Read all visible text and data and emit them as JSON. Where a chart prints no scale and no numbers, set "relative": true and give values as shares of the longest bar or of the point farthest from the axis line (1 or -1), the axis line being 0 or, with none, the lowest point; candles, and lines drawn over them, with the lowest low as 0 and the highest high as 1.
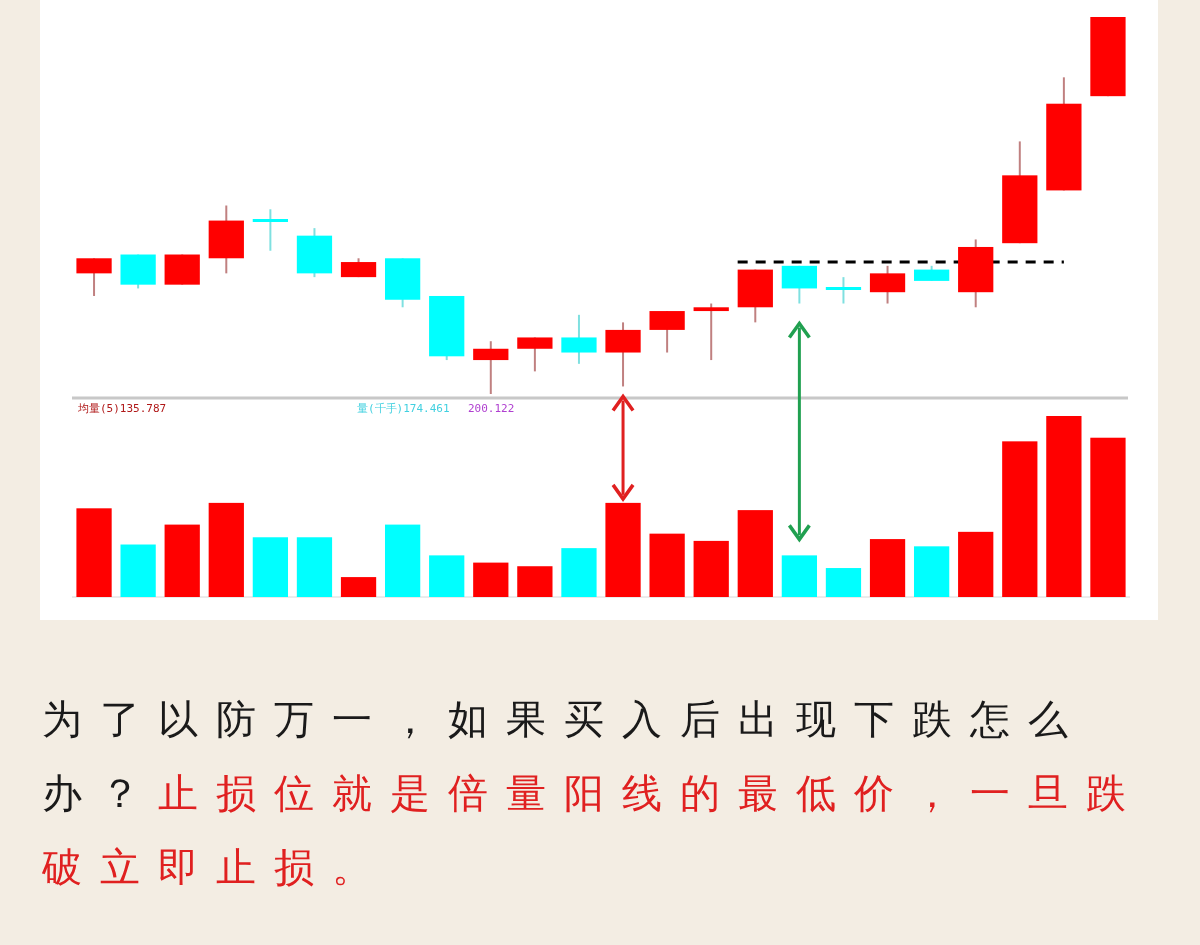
{
  "chart_data": [
    {
      "type": "candlestick",
      "relative": true,
      "categories": [
        null,
        null,
        null,
        null,
        null,
        null,
        null,
        null,
        null,
        null,
        null,
        null,
        null,
        null,
        null,
        null,
        null,
        null,
        null,
        null,
        null,
        null,
        null,
        null
      ],
      "ohlc": [
        [
          0.32,
          0.36,
          0.26,
          0.36
        ],
        [
          0.37,
          0.37,
          0.28,
          0.29
        ],
        [
          0.29,
          0.37,
          0.29,
          0.37
        ],
        [
          0.36,
          0.5,
          0.32,
          0.46
        ],
        [
          0.46,
          0.49,
          0.38,
          0.46
        ],
        [
          0.42,
          0.44,
          0.31,
          0.32
        ],
        [
          0.31,
          0.36,
          0.31,
          0.35
        ],
        [
          0.36,
          0.36,
          0.23,
          0.25
        ],
        [
          0.26,
          0.26,
          0.09,
          0.1
        ],
        [
          0.09,
          0.14,
          0,
          0.12
        ],
        [
          0.12,
          0.15,
          0.06,
          0.15
        ],
        [
          0.15,
          0.21,
          0.08,
          0.11
        ],
        [
          0.11,
          0.19,
          0.02,
          0.17
        ],
        [
          0.17,
          0.22,
          0.11,
          0.22
        ],
        [
          0.22,
          0.24,
          0.09,
          0.23
        ],
        [
          0.23,
          0.33,
          0.19,
          0.33
        ],
        [
          0.34,
          0.34,
          0.24,
          0.28
        ],
        [
          0.28,
          0.31,
          0.24,
          0.28
        ],
        [
          0.27,
          0.34,
          0.24,
          0.32
        ],
        [
          0.33,
          0.34,
          0.3,
          0.3
        ],
        [
          0.27,
          0.41,
          0.23,
          0.39
        ],
        [
          0.4,
          0.67,
          0.4,
          0.58
        ],
        [
          0.54,
          0.84,
          0.54,
          0.77
        ],
        [
          0.79,
          1,
          0.79,
          1
        ]
      ],
      "colors": [
        "#ff0000",
        "#00ffff",
        "#ff0000",
        "#ff0000",
        "#00ffff",
        "#00ffff",
        "#ff0000",
        "#00ffff",
        "#00ffff",
        "#ff0000",
        "#ff0000",
        "#00ffff",
        "#ff0000",
        "#ff0000",
        "#ff0000",
        "#ff0000",
        "#00ffff",
        "#00ffff",
        "#ff0000",
        "#00ffff",
        "#ff0000",
        "#ff0000",
        "#ff0000",
        "#ff0000"
      ],
      "ref_lines": [
        {
          "axis": "y",
          "value": 0.35,
          "color": "#000000",
          "line_style": "dashed"
        }
      ]
    },
    {
      "type": "bar",
      "relative": true,
      "categories": [
        null,
        null,
        null,
        null,
        null,
        null,
        null,
        null,
        null,
        null,
        null,
        null,
        null,
        null,
        null,
        null,
        null,
        null,
        null,
        null,
        null,
        null,
        null,
        null
      ],
      "values": [
        0.49,
        0.29,
        0.4,
        0.52,
        0.33,
        0.33,
        0.11,
        0.4,
        0.23,
        0.19,
        0.17,
        0.27,
        0.52,
        0.35,
        0.31,
        0.48,
        0.23,
        0.16,
        0.32,
        0.28,
        0.36,
        0.86,
        1,
        0.88
      ],
      "colors": [
        "#ff0000",
        "#00ffff",
        "#ff0000",
        "#ff0000",
        "#00ffff",
        "#00ffff",
        "#ff0000",
        "#00ffff",
        "#00ffff",
        "#ff0000",
        "#ff0000",
        "#00ffff",
        "#ff0000",
        "#ff0000",
        "#ff0000",
        "#ff0000",
        "#00ffff",
        "#00ffff",
        "#ff0000",
        "#00ffff",
        "#ff0000",
        "#ff0000",
        "#ff0000",
        "#ff0000"
      ],
      "annotations": [
        "均量(5)135.787",
        "量(千手)174.461",
        "200.122",
        "为了以防万一，如果买入后出现下跌怎么办？",
        "止损位就是倍量阳线的最低价，一旦跌破立即止损。"
      ]
    }
  ]
}
